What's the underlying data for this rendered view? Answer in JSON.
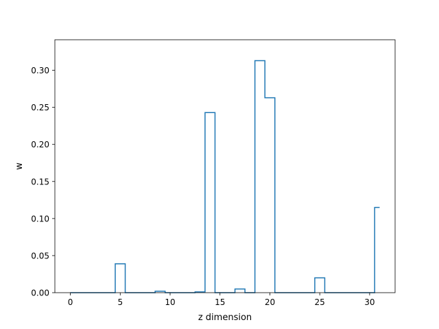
{
  "chart_data": {
    "type": "step",
    "title": "",
    "xlabel": "z dimension",
    "ylabel": "w",
    "xlim": [
      -1.55,
      32.55
    ],
    "ylim": [
      0,
      0.3412
    ],
    "x_ticks": [
      0,
      5,
      10,
      15,
      20,
      25,
      30
    ],
    "y_ticks": [
      0.0,
      0.05,
      0.1,
      0.15,
      0.2,
      0.25,
      0.3
    ],
    "x_tick_labels": [
      "0",
      "5",
      "10",
      "15",
      "20",
      "25",
      "30"
    ],
    "y_tick_labels": [
      "0.00",
      "0.05",
      "0.10",
      "0.15",
      "0.20",
      "0.25",
      "0.30"
    ],
    "grid": false,
    "series": [
      {
        "color": "#1f77b4",
        "step_where": "mid",
        "x": [
          0,
          1,
          2,
          3,
          4,
          5,
          6,
          7,
          8,
          9,
          10,
          11,
          12,
          13,
          14,
          15,
          16,
          17,
          18,
          19,
          20,
          21,
          22,
          23,
          24,
          25,
          26,
          27,
          28,
          29,
          30,
          31
        ],
        "values": [
          0.0,
          0.0,
          0.0,
          0.0,
          0.0,
          0.039,
          0.0,
          0.0,
          0.0,
          0.002,
          0.0,
          0.0,
          0.0,
          0.001,
          0.243,
          0.0,
          0.0,
          0.005,
          0.0,
          0.313,
          0.263,
          0.0,
          0.0,
          0.0,
          0.0,
          0.02,
          0.0,
          0.0,
          0.0,
          0.0,
          0.0,
          0.115
        ]
      }
    ]
  }
}
